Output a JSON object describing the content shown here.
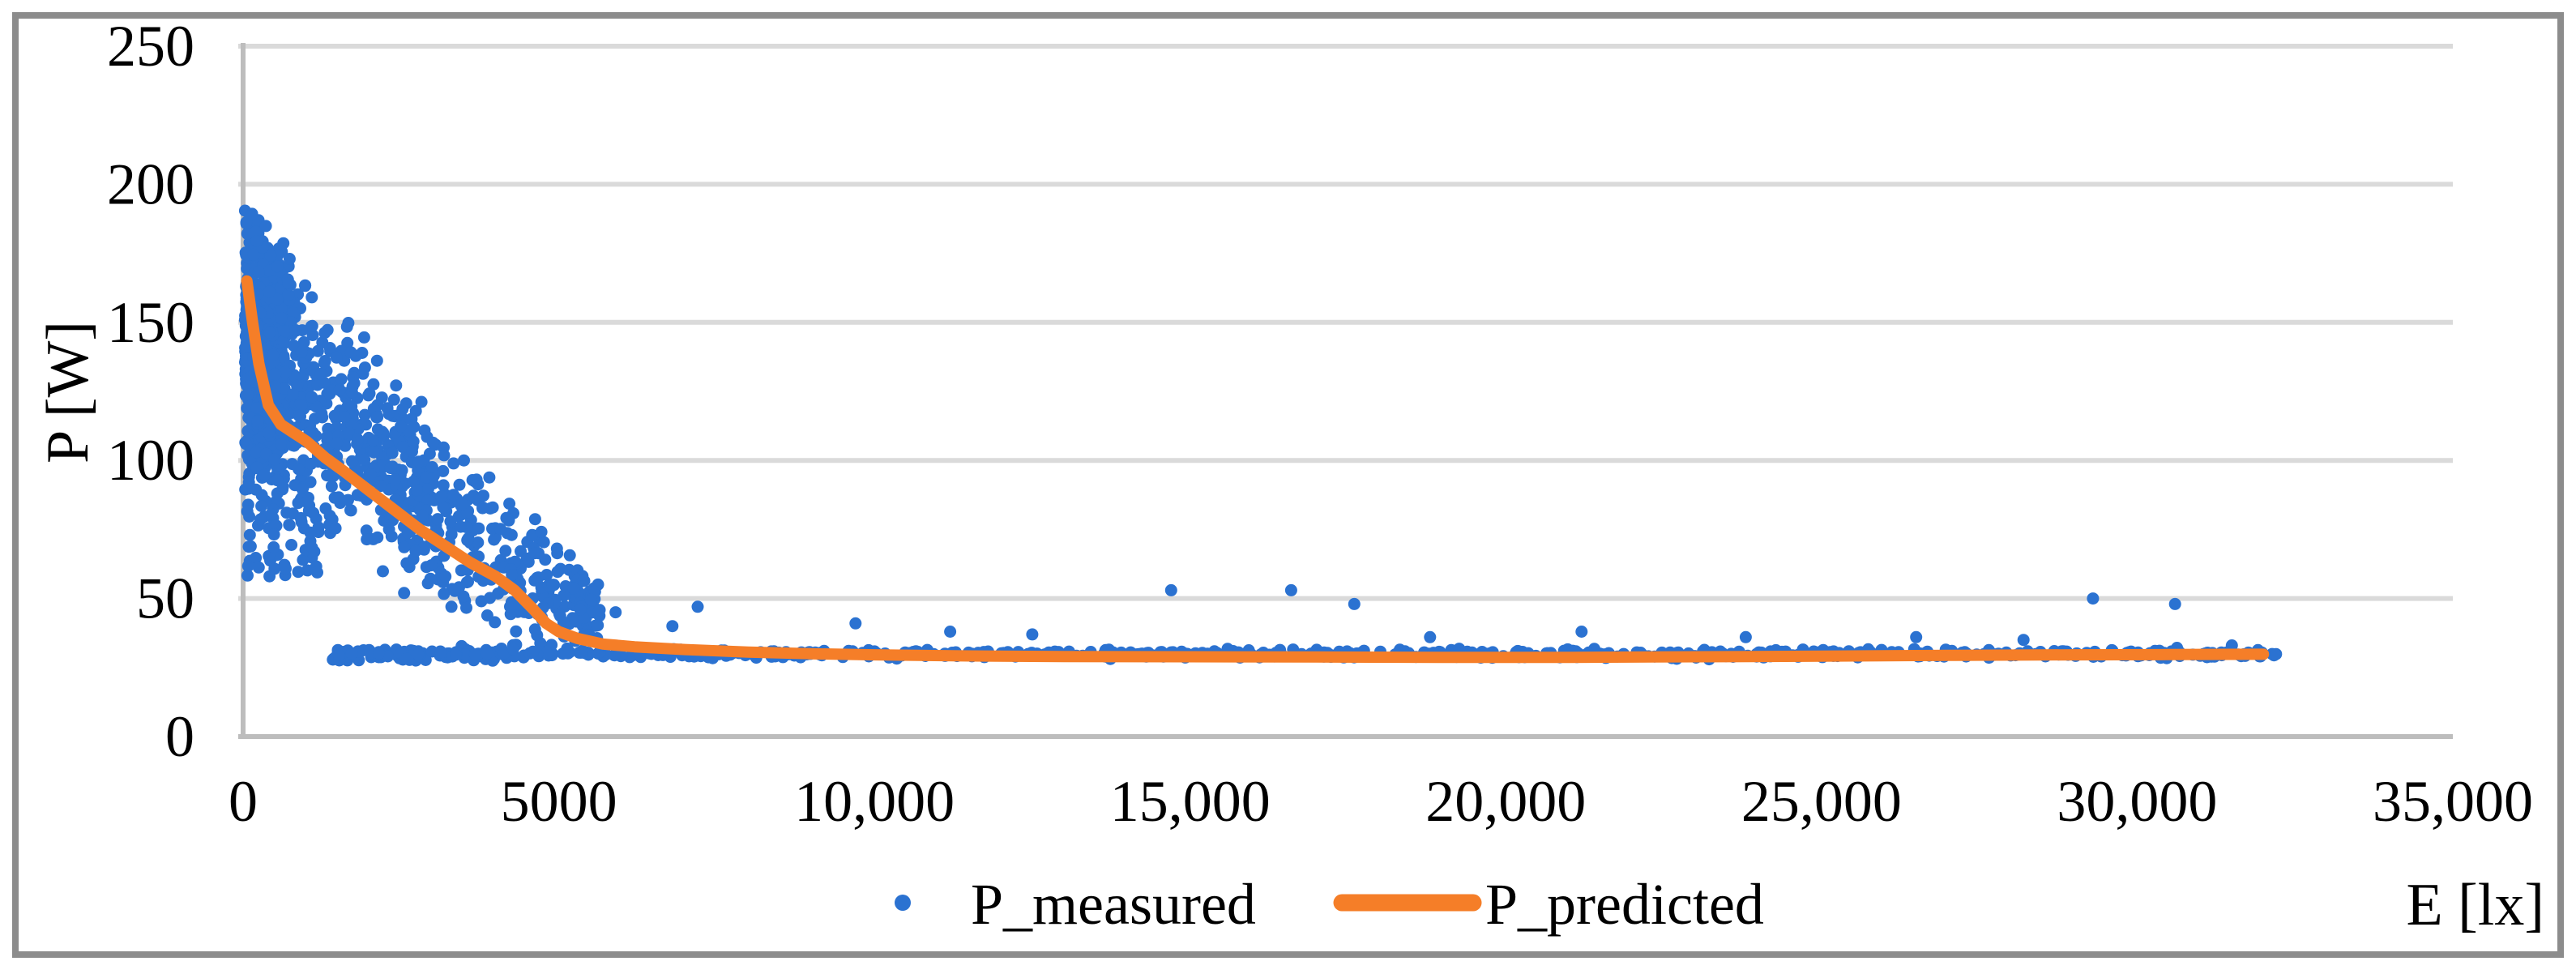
{
  "figure": {
    "background": "#ffffff",
    "border_color": "#8c8c8c"
  },
  "chart_data": {
    "type": "scatter",
    "title": "",
    "xlabel": "E [lx]",
    "ylabel": "P [W]",
    "xlim": [
      0,
      35000
    ],
    "ylim": [
      0,
      250
    ],
    "x_ticks": [
      0,
      5000,
      10000,
      15000,
      20000,
      25000,
      30000,
      35000
    ],
    "x_tick_labels": [
      "0",
      "5000",
      "10,000",
      "15,000",
      "20,000",
      "25,000",
      "30,000",
      "35,000"
    ],
    "y_ticks": [
      0,
      50,
      100,
      150,
      200,
      250
    ],
    "y_tick_labels": [
      "0",
      "50",
      "100",
      "150",
      "200",
      "250"
    ],
    "grid": "horizontal",
    "legend_position": "bottom-center",
    "colors": {
      "measured_blue": "#2b72d1",
      "predicted_orange": "#f57e28",
      "gridline": "#dadada",
      "axis_line": "#bdbdbd",
      "text": "#000000"
    },
    "series": [
      {
        "name": "P_measured",
        "type": "scatter",
        "color": "#2b72d1",
        "marker_radius": 7.5,
        "description": "Dense decreasing cloud 0-5600 lx between ~50-196 W, plus flat bottom band ~27-35 W from ~1500 to ~32200 lx",
        "distribution": {
          "seed": 20240613,
          "envelope": {
            "top0": 196,
            "top_slope": 0.0245,
            "bot0": 88,
            "bot_slope": 0.0138,
            "bot_floor": 28
          },
          "clusters": [
            {
              "model": "fan",
              "n": 700,
              "e_min": 30,
              "e_span": 620,
              "e_pow": 1.0
            },
            {
              "model": "fan",
              "n": 820,
              "e_min": 200,
              "e_span": 5450,
              "e_pow": 1.45
            },
            {
              "model": "sparse",
              "n": 60,
              "e_min": 60,
              "e_span": 1140,
              "p_lo": 58,
              "p_hi": 88
            },
            {
              "model": "lowarm",
              "n": 45,
              "e_min": 1400,
              "e_span": 3100,
              "p_base": 27.5,
              "p_amp": 8
            },
            {
              "model": "band",
              "n": 600,
              "e_min": 1500,
              "e_span": 30700,
              "e_pow": 1.02,
              "p_center": 30,
              "p_amp": 2.6,
              "p_lo": 26.5,
              "p_hi": 36.5
            }
          ]
        },
        "outlier_points": [
          [
            2550,
            52
          ],
          [
            3300,
            47
          ],
          [
            4900,
            55
          ],
          [
            5900,
            45
          ],
          [
            6800,
            40
          ],
          [
            7200,
            47
          ],
          [
            9700,
            41
          ],
          [
            11200,
            38
          ],
          [
            12500,
            37
          ],
          [
            14700,
            53
          ],
          [
            16600,
            53
          ],
          [
            17600,
            48
          ],
          [
            18800,
            36
          ],
          [
            21200,
            38
          ],
          [
            23800,
            36
          ],
          [
            26500,
            36
          ],
          [
            28200,
            35
          ],
          [
            29300,
            50
          ],
          [
            30600,
            48
          ],
          [
            31500,
            33
          ]
        ]
      },
      {
        "name": "P_predicted",
        "type": "line",
        "color": "#f57e28",
        "line_width": 14,
        "points": [
          [
            60,
            165
          ],
          [
            150,
            150
          ],
          [
            250,
            135
          ],
          [
            400,
            120
          ],
          [
            600,
            113
          ],
          [
            800,
            110
          ],
          [
            1000,
            107
          ],
          [
            1300,
            101
          ],
          [
            1600,
            96
          ],
          [
            2000,
            89
          ],
          [
            2400,
            82
          ],
          [
            2800,
            75
          ],
          [
            3200,
            69
          ],
          [
            3600,
            63
          ],
          [
            4000,
            58
          ],
          [
            4300,
            53
          ],
          [
            4600,
            46
          ],
          [
            4800,
            41
          ],
          [
            5000,
            38
          ],
          [
            5300,
            35.5
          ],
          [
            5700,
            33.5
          ],
          [
            6200,
            32.5
          ],
          [
            7000,
            31.5
          ],
          [
            8000,
            30.6
          ],
          [
            9000,
            30
          ],
          [
            10000,
            29.6
          ],
          [
            11500,
            29.2
          ],
          [
            13000,
            29
          ],
          [
            15000,
            28.9
          ],
          [
            17000,
            28.8
          ],
          [
            19000,
            28.7
          ],
          [
            21000,
            28.7
          ],
          [
            23000,
            28.9
          ],
          [
            25000,
            29.1
          ],
          [
            27000,
            29.4
          ],
          [
            29000,
            29.6
          ],
          [
            30500,
            29.7
          ],
          [
            32000,
            29.8
          ]
        ]
      }
    ]
  },
  "legend": {
    "measured_label": "P_measured",
    "predicted_label": "P_predicted"
  }
}
